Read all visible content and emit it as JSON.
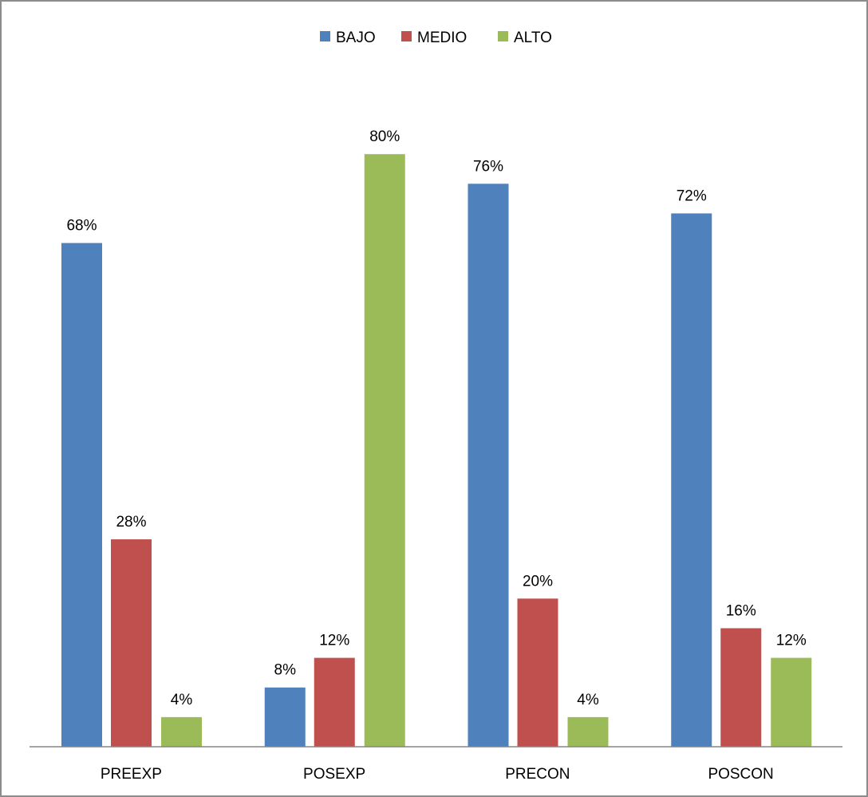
{
  "chart_data": {
    "type": "bar",
    "title": "",
    "xlabel": "",
    "ylabel": "",
    "categories": [
      "PREEXP",
      "POSEXP",
      "PRECON",
      "POSCON"
    ],
    "series": [
      {
        "name": "BAJO",
        "color": "#4f81bd",
        "values": [
          68,
          8,
          76,
          72
        ]
      },
      {
        "name": "MEDIO",
        "color": "#c0504d",
        "values": [
          28,
          12,
          20,
          16
        ]
      },
      {
        "name": "ALTO",
        "color": "#9bbb59",
        "values": [
          4,
          80,
          4,
          12
        ]
      }
    ],
    "data_labels": [
      [
        "68%",
        "8%",
        "76%",
        "72%"
      ],
      [
        "28%",
        "12%",
        "20%",
        "16%"
      ],
      [
        "4%",
        "80%",
        "4%",
        "12%"
      ]
    ],
    "ylim": [
      0,
      100
    ],
    "grid": false,
    "legend": "top"
  }
}
